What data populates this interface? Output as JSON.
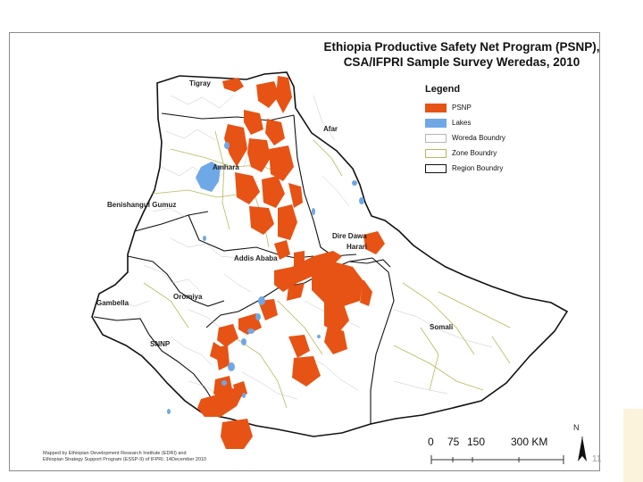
{
  "title": {
    "line1": "Ethiopia Productive Safety Net Program (PSNP),",
    "line2": "CSA/IFPRI Sample Survey Weredas, 2010"
  },
  "legend": {
    "title": "Legend",
    "items": [
      {
        "label": "PSNP",
        "fill": "#e65314",
        "border": "#e65314"
      },
      {
        "label": "Lakes",
        "fill": "#6fa8e6",
        "border": "#6fa8e6"
      },
      {
        "label": "Woreda Boundry",
        "fill": "#ffffff",
        "border": "#b5b5b5"
      },
      {
        "label": "Zone Boundry",
        "fill": "#ffffff",
        "border": "#b8b85a"
      },
      {
        "label": "Region Boundry",
        "fill": "#ffffff",
        "border": "#111111"
      }
    ]
  },
  "regions": {
    "tigray": "Tigray",
    "afar": "Afar",
    "amhara": "Amhara",
    "benishangul": "Benishangul Gumuz",
    "dire_dawa": "Dire Dawa",
    "harari": "Harari",
    "addis": "Addis Ababa",
    "oromiya": "Oromiya",
    "gambella": "Gambella",
    "snnp": "SNNP",
    "somali": "Somali"
  },
  "scale": {
    "ticks": [
      "0",
      "75",
      "150",
      "300 KM"
    ]
  },
  "north": "N",
  "credit": {
    "line1": "Mapped by Ethiopian Development Research Institute (EDRI) and",
    "line2": "Ethiopian Strategy Support Program (ESSP-II) of IFPRI. 14December 2010"
  },
  "page_number": "11",
  "colors": {
    "psnp": "#e65314",
    "lakes": "#6fa8e6",
    "region_border": "#111111",
    "zone": "#b8b85a",
    "woreda": "#c4c4c4"
  }
}
